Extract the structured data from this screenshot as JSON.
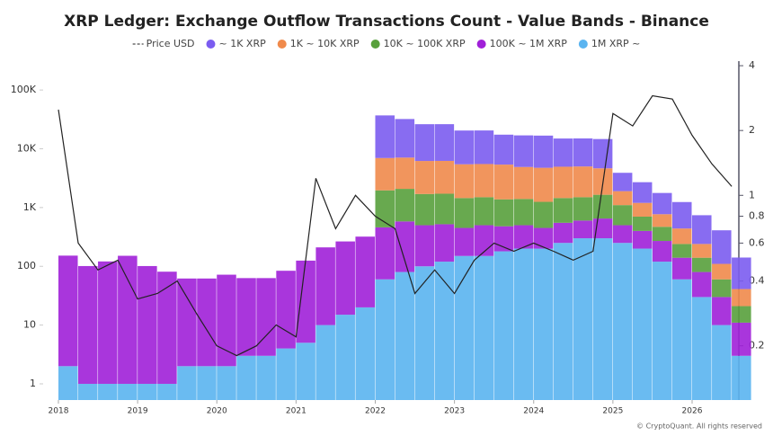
{
  "chart_data": {
    "type": "bar",
    "stacked": true,
    "log_scale": true,
    "title": "XRP Ledger: Exchange Outflow Transactions Count - Value Bands - Binance",
    "copyright": "© CryptoQuant. All rights reserved",
    "x": [
      2018.0,
      2018.25,
      2018.5,
      2018.75,
      2019.0,
      2019.25,
      2019.5,
      2019.75,
      2020.0,
      2020.25,
      2020.5,
      2020.75,
      2021.0,
      2021.25,
      2021.5,
      2021.75,
      2022.0,
      2022.25,
      2022.5,
      2022.75,
      2023.0,
      2023.25,
      2023.5,
      2023.75,
      2024.0,
      2024.25,
      2024.5,
      2024.75,
      2025.0,
      2025.25,
      2025.5,
      2025.75,
      2026.0,
      2026.25,
      2026.5
    ],
    "xlim": [
      2017.83,
      2026.59
    ],
    "xticks": [
      2018,
      2019,
      2020,
      2021,
      2022,
      2023,
      2024,
      2025,
      2026
    ],
    "ylim": [
      0.53,
      310000
    ],
    "yticks": [
      1,
      10,
      100,
      {
        "value": 1000,
        "label": "1K"
      },
      {
        "value": 10000,
        "label": "10K"
      },
      {
        "value": 100000,
        "label": "100K"
      }
    ],
    "y2lim": [
      0.112,
      4.2
    ],
    "y2ticks": [
      0.2,
      0.4,
      0.6,
      0.8,
      1,
      2,
      4
    ],
    "series": [
      {
        "name": "1M XRP ~",
        "color": "#5ab4f0",
        "values": [
          2,
          1,
          1,
          1,
          1,
          1,
          2,
          2,
          2,
          3,
          3,
          4,
          5,
          10,
          15,
          20,
          60,
          80,
          100,
          120,
          150,
          150,
          180,
          200,
          200,
          250,
          300,
          300,
          250,
          200,
          120,
          60,
          30,
          10,
          3
        ]
      },
      {
        "name": "100K ~ 1M XRP",
        "color": "#a020d8",
        "values": [
          150,
          100,
          120,
          150,
          100,
          80,
          60,
          60,
          70,
          60,
          60,
          80,
          120,
          200,
          250,
          300,
          400,
          500,
          400,
          400,
          300,
          350,
          300,
          300,
          250,
          300,
          300,
          350,
          250,
          200,
          150,
          80,
          50,
          20,
          8
        ]
      },
      {
        "name": "10K ~ 100K XRP",
        "color": "#58a03c",
        "values": [
          0,
          0,
          0,
          0,
          0,
          0,
          0,
          0,
          0,
          0,
          0,
          0,
          0,
          0,
          0,
          0,
          1500,
          1500,
          1200,
          1200,
          1000,
          1000,
          900,
          900,
          800,
          900,
          900,
          1000,
          600,
          300,
          200,
          100,
          60,
          30,
          10
        ]
      },
      {
        "name": "1K ~ 10K XRP",
        "color": "#f08a4b",
        "values": [
          0,
          0,
          0,
          0,
          0,
          0,
          0,
          0,
          0,
          0,
          0,
          0,
          0,
          0,
          0,
          0,
          5000,
          5000,
          4500,
          4500,
          4000,
          4000,
          4000,
          3500,
          3500,
          3500,
          3500,
          3000,
          800,
          500,
          300,
          200,
          100,
          50,
          20
        ]
      },
      {
        "name": "~ 1K XRP",
        "color": "#7b5cf0",
        "values": [
          0,
          0,
          0,
          0,
          0,
          0,
          0,
          0,
          0,
          0,
          0,
          0,
          0,
          0,
          0,
          0,
          30000,
          25000,
          20000,
          20000,
          15000,
          15000,
          12000,
          12000,
          12000,
          10000,
          10000,
          10000,
          2000,
          1500,
          1000,
          800,
          500,
          300,
          100
        ]
      },
      {
        "name": "Price USD",
        "type": "line",
        "axis": "y2",
        "color": "#222222",
        "values": [
          2.5,
          0.6,
          0.45,
          0.5,
          0.33,
          0.35,
          0.4,
          0.28,
          0.2,
          0.18,
          0.2,
          0.25,
          0.22,
          1.2,
          0.7,
          1.0,
          0.8,
          0.7,
          0.35,
          0.45,
          0.35,
          0.5,
          0.6,
          0.55,
          0.6,
          0.55,
          0.5,
          0.55,
          2.4,
          2.1,
          2.9,
          2.8,
          1.9,
          1.4,
          1.1
        ]
      }
    ]
  }
}
